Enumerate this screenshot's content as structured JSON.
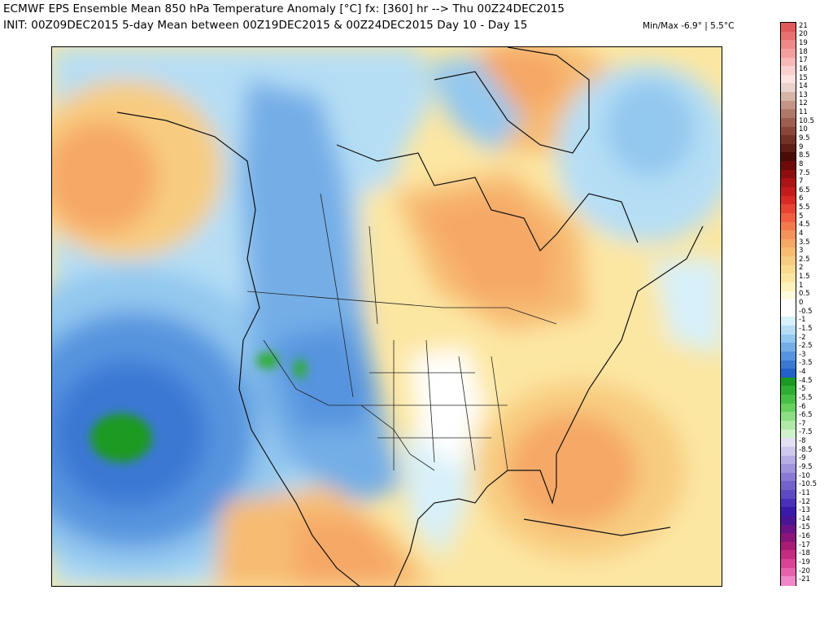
{
  "header": {
    "line1": "ECMWF EPS Ensemble Mean 850 hPa Temperature Anomaly [°C] fx: [360] hr --> Thu 00Z24DEC2015",
    "line2": "INIT: 00Z09DEC2015 5-day Mean between 00Z19DEC2015 & 00Z24DEC2015     Day 10 - Day 15",
    "minmax": "Min/Max -6.9° |  5.5°C"
  },
  "colorbar": {
    "labels": [
      "21",
      "20",
      "19",
      "18",
      "17",
      "16",
      "15",
      "14",
      "13",
      "12",
      "11",
      "10.5",
      "10",
      "9.5",
      "9",
      "8.5",
      "8",
      "7.5",
      "7",
      "6.5",
      "6",
      "5.5",
      "5",
      "4.5",
      "4",
      "3.5",
      "3",
      "2.5",
      "2",
      "1.5",
      "1",
      "0.5",
      "0",
      "-0.5",
      "-1",
      "-1.5",
      "-2",
      "-2.5",
      "-3",
      "-3.5",
      "-4",
      "-4.5",
      "-5",
      "-5.5",
      "-6",
      "-6.5",
      "-7",
      "-7.5",
      "-8",
      "-8.5",
      "-9",
      "-9.5",
      "-10",
      "-10.5",
      "-11",
      "-12",
      "-13",
      "-14",
      "-15",
      "-16",
      "-17",
      "-18",
      "-19",
      "-20",
      "-21"
    ],
    "colors": [
      "#e05a5a",
      "#e87070",
      "#ef8888",
      "#f4a0a0",
      "#f7b8b8",
      "#f9cfcf",
      "#fbe3e3",
      "#e9d3cc",
      "#d6b4a8",
      "#c49586",
      "#b07868",
      "#9c5e4f",
      "#884738",
      "#733226",
      "#5e1f16",
      "#4a0c08",
      "#6e0a0a",
      "#8c0e0e",
      "#aa1414",
      "#c41c1c",
      "#d92a26",
      "#e84434",
      "#f15e42",
      "#f47a4e",
      "#f5925a",
      "#f6a866",
      "#f7bb72",
      "#f8cc80",
      "#fadb90",
      "#fce7a2",
      "#fdf2bb",
      "#fefae0",
      "#ffffff",
      "#ffffff",
      "#d7f0fa",
      "#b5def5",
      "#93c8ef",
      "#74aee7",
      "#5794df",
      "#3a78d4",
      "#2360c8",
      "#1a9a22",
      "#2eae32",
      "#48c046",
      "#67d060",
      "#8cdd84",
      "#b0e8a8",
      "#d0f2cb",
      "#e4e0f4",
      "#cfc8ee",
      "#b8aee6",
      "#a194dd",
      "#8a7ad4",
      "#7462cb",
      "#5e4ac2",
      "#4a30b8",
      "#3a1aa8",
      "#4a1496",
      "#6a1286",
      "#8a1478",
      "#a81c74",
      "#c42c82",
      "#d84496",
      "#e662ac",
      "#f088c8"
    ]
  }
}
